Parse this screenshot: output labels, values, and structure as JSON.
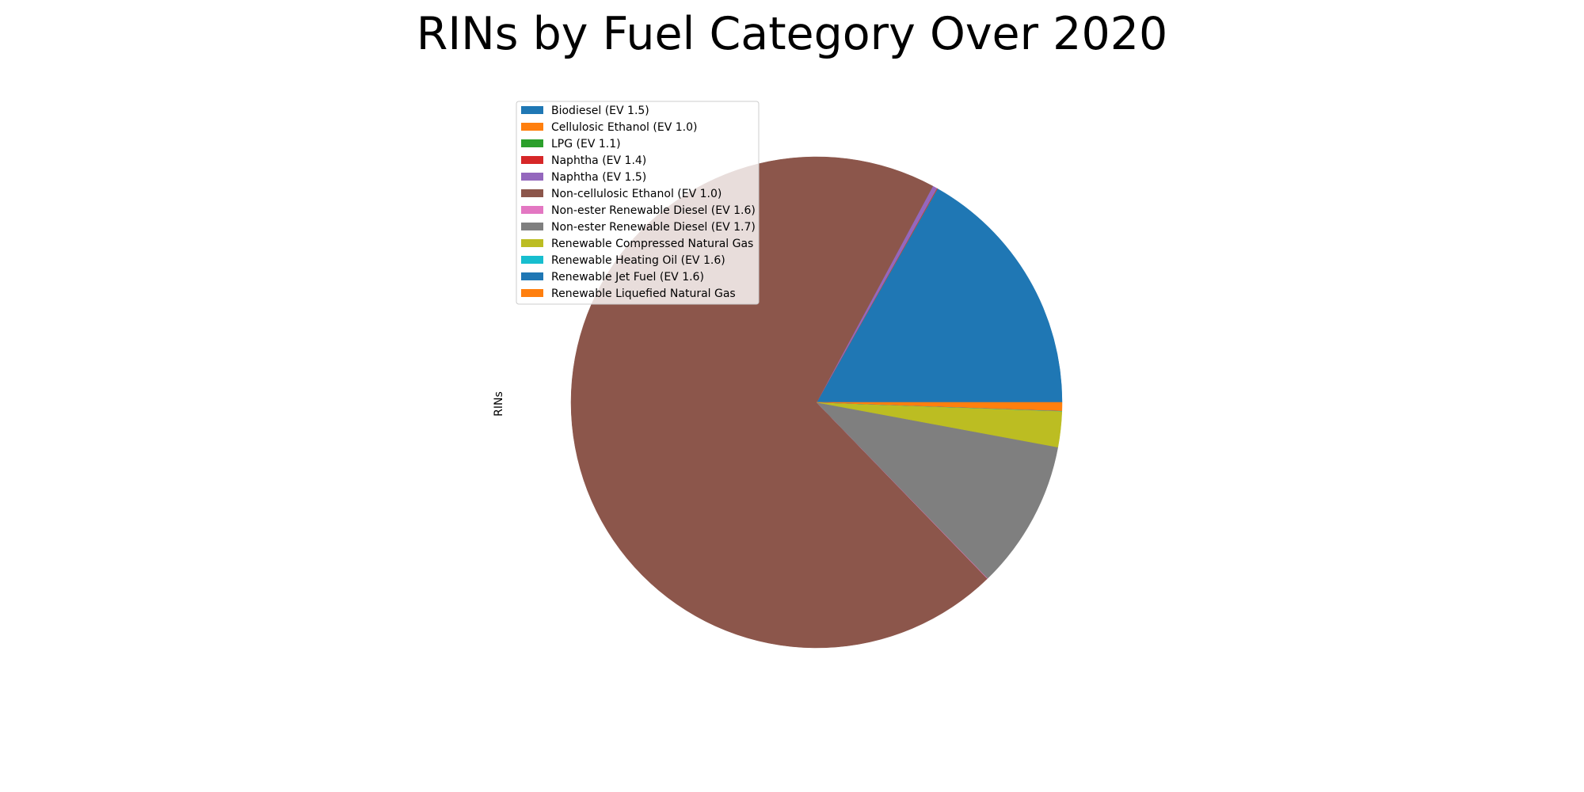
{
  "chart_data": {
    "type": "pie",
    "title": "RINs by Fuel Category Over 2020",
    "ylabel": "RINs",
    "legend_position": "upper-left",
    "start_angle_deg": 0,
    "direction": "counterclockwise",
    "slices": [
      {
        "label": "Biodiesel (EV 1.5)",
        "value": 16.8,
        "color": "#1f77b4"
      },
      {
        "label": "Cellulosic Ethanol (EV 1.0)",
        "value": 0.01,
        "color": "#ff7f0e"
      },
      {
        "label": "LPG (EV 1.1)",
        "value": 0.005,
        "color": "#2ca02c"
      },
      {
        "label": "Naphtha (EV 1.4)",
        "value": 0.03,
        "color": "#d62728"
      },
      {
        "label": "Naphtha (EV 1.5)",
        "value": 0.3,
        "color": "#9467bd"
      },
      {
        "label": "Non-cellulosic Ethanol (EV 1.0)",
        "value": 70.1,
        "color": "#8c564b"
      },
      {
        "label": "Non-ester Renewable Diesel (EV 1.6)",
        "value": 0.03,
        "color": "#e377c2"
      },
      {
        "label": "Non-ester Renewable Diesel (EV 1.7)",
        "value": 9.8,
        "color": "#7f7f7f"
      },
      {
        "label": "Renewable Compressed Natural Gas",
        "value": 2.35,
        "color": "#bcbd22"
      },
      {
        "label": "Renewable Heating Oil (EV 1.6)",
        "value": 0.015,
        "color": "#17becf"
      },
      {
        "label": "Renewable Jet Fuel (EV 1.6)",
        "value": 0.01,
        "color": "#1f77b4"
      },
      {
        "label": "Renewable Liquefied Natural Gas",
        "value": 0.55,
        "color": "#ff7f0e"
      }
    ]
  }
}
